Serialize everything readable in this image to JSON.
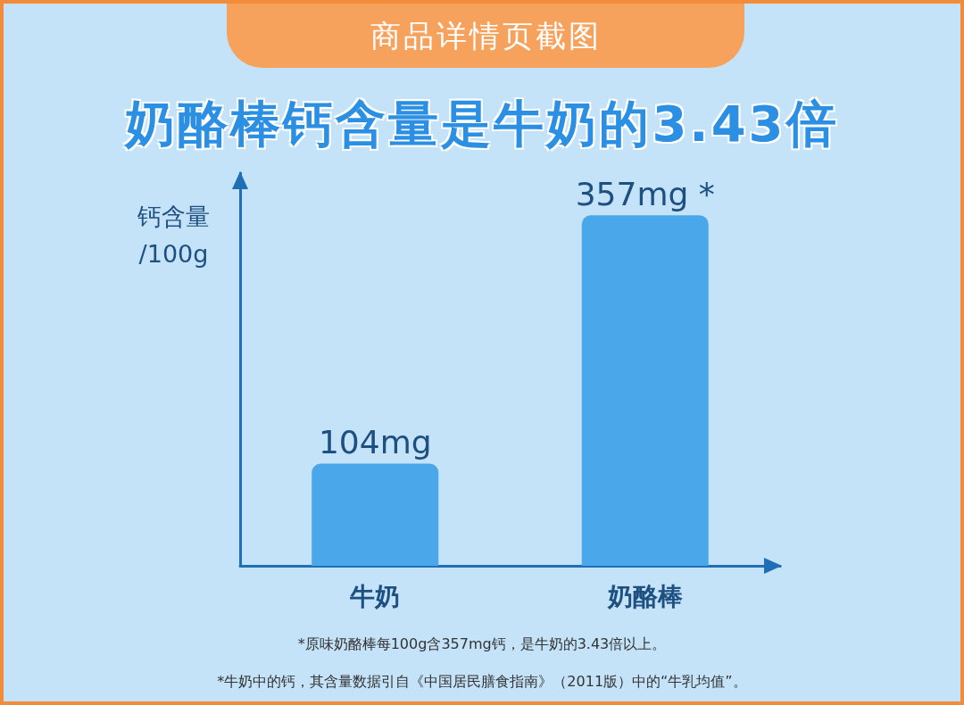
{
  "chart_data": {
    "type": "bar",
    "subtitle": "商品详情页截图",
    "title": "奶酪棒钙含量是牛奶的3.43倍",
    "ylabel": "钙含量\n/100g",
    "categories": [
      "牛奶",
      "奶酪棒"
    ],
    "values": [
      104,
      357
    ],
    "value_labels": [
      "104mg",
      "357mg *"
    ],
    "color": "#4aa8ea",
    "ylim": [
      0,
      400
    ],
    "tick_labels": "x",
    "grid": false,
    "annotations": [
      "*原味奶酪棒每100g含357mg钙，是牛奶的3.43倍以上。",
      "*牛奶中的钙，其含量数据引自《中国居民膳食指南》（2011版）中的“牛乳均值”。"
    ]
  }
}
